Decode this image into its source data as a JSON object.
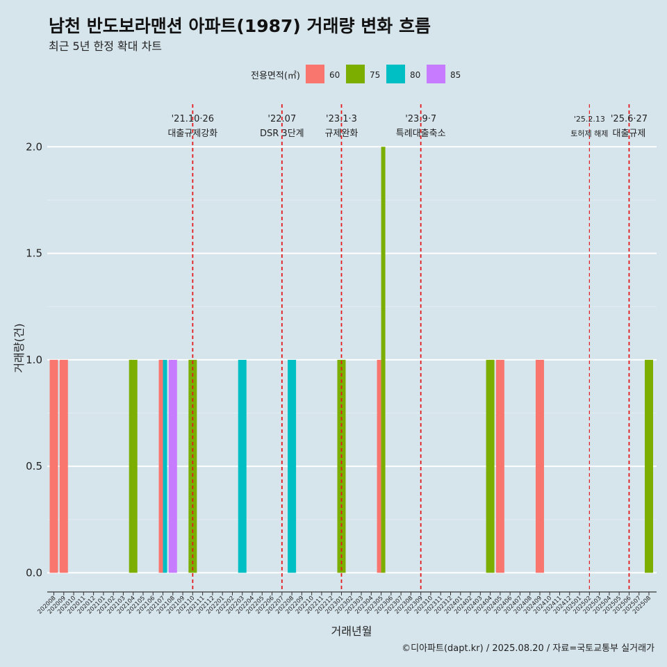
{
  "header": {
    "title": "남천 반도보라맨션 아파트(1987) 거래량 변화 흐름",
    "subtitle": "최근 5년 한정 확대 차트"
  },
  "caption": "©디아파트(dapt.kr) / 2025.08.20 / 자료=국토교통부 실거래가",
  "chart_data": {
    "type": "bar",
    "xlabel": "거래년월",
    "ylabel": "거래량(건)",
    "ylim": [
      -0.09,
      2.2
    ],
    "yticks": [
      0.0,
      0.5,
      1.0,
      1.5,
      2.0
    ],
    "ytick_labels": [
      "0.0",
      "0.5",
      "1.0",
      "1.5",
      "2.0"
    ],
    "grid": true,
    "legend": {
      "title": "전용면적(㎡)",
      "position": "top",
      "entries": [
        {
          "name": "60",
          "color": "#F8766D"
        },
        {
          "name": "75",
          "color": "#7CAE00"
        },
        {
          "name": "80",
          "color": "#00BFC4"
        },
        {
          "name": "85",
          "color": "#C77CFF"
        }
      ]
    },
    "categories": [
      "202008",
      "202009",
      "202010",
      "202011",
      "202012",
      "202101",
      "202102",
      "202103",
      "202104",
      "202105",
      "202106",
      "202107",
      "202108",
      "202109",
      "202110",
      "202111",
      "202112",
      "202201",
      "202202",
      "202203",
      "202204",
      "202205",
      "202206",
      "202207",
      "202208",
      "202209",
      "202210",
      "202211",
      "202212",
      "202301",
      "202302",
      "202303",
      "202304",
      "202305",
      "202306",
      "202307",
      "202308",
      "202309",
      "202310",
      "202311",
      "202312",
      "202401",
      "202402",
      "202403",
      "202404",
      "202405",
      "202406",
      "202407",
      "202408",
      "202409",
      "202410",
      "202411",
      "202412",
      "202501",
      "202502",
      "202503",
      "202504",
      "202505",
      "202506",
      "202507",
      "202508"
    ],
    "bars": [
      {
        "category": "202008",
        "series": "60",
        "value": 1,
        "slot": 0,
        "slots": 1
      },
      {
        "category": "202009",
        "series": "60",
        "value": 1,
        "slot": 0,
        "slots": 1
      },
      {
        "category": "202104",
        "series": "75",
        "value": 1,
        "slot": 0,
        "slots": 1
      },
      {
        "category": "202107",
        "series": "60",
        "value": 1,
        "slot": 0,
        "slots": 2
      },
      {
        "category": "202107",
        "series": "80",
        "value": 1,
        "slot": 1,
        "slots": 2
      },
      {
        "category": "202108",
        "series": "85",
        "value": 1,
        "slot": 0,
        "slots": 1
      },
      {
        "category": "202110",
        "series": "75",
        "value": 1,
        "slot": 0,
        "slots": 1
      },
      {
        "category": "202203",
        "series": "80",
        "value": 1,
        "slot": 0,
        "slots": 1
      },
      {
        "category": "202208",
        "series": "80",
        "value": 1,
        "slot": 0,
        "slots": 1
      },
      {
        "category": "202301",
        "series": "75",
        "value": 1,
        "slot": 0,
        "slots": 1
      },
      {
        "category": "202305",
        "series": "60",
        "value": 1,
        "slot": 0,
        "slots": 2
      },
      {
        "category": "202305",
        "series": "75",
        "value": 2,
        "slot": 1,
        "slots": 2
      },
      {
        "category": "202404",
        "series": "75",
        "value": 1,
        "slot": 0,
        "slots": 1
      },
      {
        "category": "202405",
        "series": "60",
        "value": 1,
        "slot": 0,
        "slots": 1
      },
      {
        "category": "202409",
        "series": "60",
        "value": 1,
        "slot": 0,
        "slots": 1
      },
      {
        "category": "202508",
        "series": "75",
        "value": 1,
        "slot": 0,
        "slots": 1
      }
    ],
    "events": [
      {
        "category": "202110",
        "label1": "'21.10·26",
        "label2": "대출규제강화",
        "small": false
      },
      {
        "category": "202207",
        "label1": "'22.07",
        "label2": "DSR 3단계",
        "small": false
      },
      {
        "category": "202301",
        "label1": "'23.1·3",
        "label2": "규제완화",
        "small": false
      },
      {
        "category": "202309",
        "label1": "'23.9·7",
        "label2": "특례대출축소",
        "small": false
      },
      {
        "category": "202502",
        "label1": "'25.2.13",
        "label2": "토허제 해제",
        "small": true
      },
      {
        "category": "202506",
        "label1": "'25.6·27",
        "label2": "대출규제",
        "small": false
      }
    ]
  }
}
